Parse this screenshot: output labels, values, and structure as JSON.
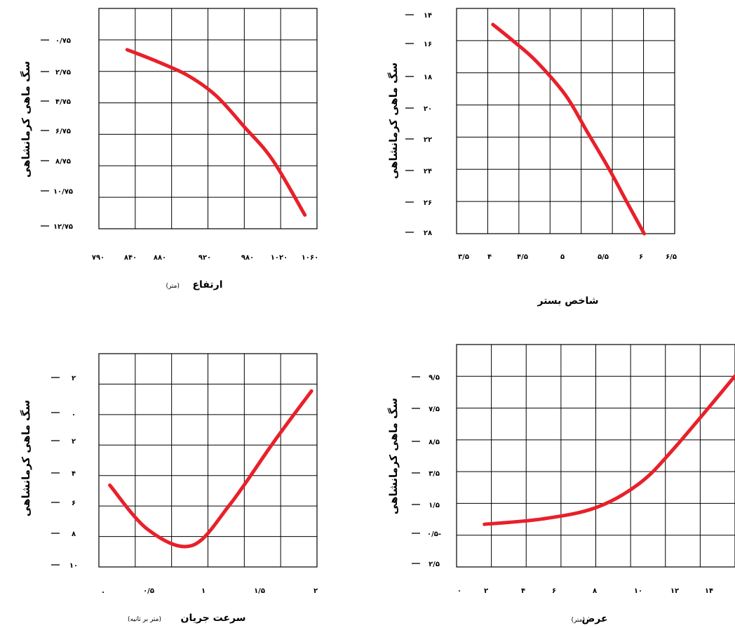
{
  "colors": {
    "curve": "#e8202a",
    "grid": "#000000",
    "background": "#ffffff"
  },
  "chart_data": [
    {
      "type": "line",
      "panel": "top-left",
      "ylabel": "سگ ماهی کرمانشاهی",
      "xlabel": "ارتفاع",
      "xunit": "(متر)",
      "x_ticks": [
        "۷۹۰",
        "۸۴۰",
        "۸۸۰",
        "۹۲۰",
        "۹۸۰",
        "۱۰۲۰",
        "۱۰۶۰"
      ],
      "y_ticks": [
        "۰/۷۵",
        "۲/۷۵",
        "۴/۷۵",
        "۶/۷۵",
        "۸/۷۵",
        "۱۰/۷۵",
        "۱۲/۷۵"
      ],
      "y_inverted": true,
      "grid": true,
      "x": [
        825,
        860,
        900,
        935,
        970,
        1005,
        1045
      ],
      "y": [
        3.0,
        3.6,
        4.4,
        5.5,
        7.2,
        9.0,
        12.0
      ]
    },
    {
      "type": "line",
      "panel": "top-right",
      "ylabel": "سگ ماهی کرمانشاهی",
      "xlabel": "شاخص بستر",
      "x_ticks": [
        "۳/۵",
        "۴",
        "۴/۵",
        "۵",
        "۵/۵",
        "۶",
        "۶/۵"
      ],
      "y_ticks": [
        "۱۴",
        "۱۶",
        "۱۸",
        "۲۰",
        "۲۲",
        "۲۴",
        "۲۶",
        "۲۸"
      ],
      "y_inverted": true,
      "grid": true,
      "x": [
        4.0,
        4.3,
        4.6,
        5.0,
        5.3,
        5.6,
        5.85,
        6.08
      ],
      "y": [
        15.0,
        16.1,
        17.3,
        19.4,
        21.7,
        24.0,
        26.1,
        28.0
      ]
    },
    {
      "type": "line",
      "panel": "bottom-left",
      "ylabel": "سگ ماهی کرمانشاهی",
      "xlabel": "سرعت جریان",
      "xunit": "(متر بر ثانیه)",
      "x_ticks": [
        ".",
        "۰/۵",
        "۱",
        "۱/۵",
        "۲"
      ],
      "y_ticks": [
        "۲",
        ".",
        "۲",
        "۴",
        "۶",
        "۸",
        "۱۰"
      ],
      "grid": true,
      "x": [
        0.1,
        0.45,
        0.85,
        1.2,
        1.6,
        1.95
      ],
      "y": [
        2.6,
        0.1,
        -0.8,
        1.5,
        5.0,
        7.9
      ]
    },
    {
      "type": "line",
      "panel": "bottom-right",
      "ylabel": "سگ ماهی کرمانشاهی",
      "xlabel": "عرض",
      "xunit": "(متر)",
      "x_ticks": [
        "۰",
        "۲",
        "۴",
        "۶",
        "۸",
        "۱۰",
        "۱۲",
        "۱۴"
      ],
      "y_ticks": [
        "۹/۵",
        "۷/۵",
        "۸/۵",
        "۳/۵",
        "۱/۵",
        "۰/۵-",
        "۲/۵"
      ],
      "grid": true,
      "x": [
        1.6,
        5.0,
        8.0,
        10.5,
        12.5,
        16.0
      ],
      "y": [
        -0.2,
        0.1,
        0.7,
        2.0,
        3.9,
        7.8
      ]
    }
  ]
}
